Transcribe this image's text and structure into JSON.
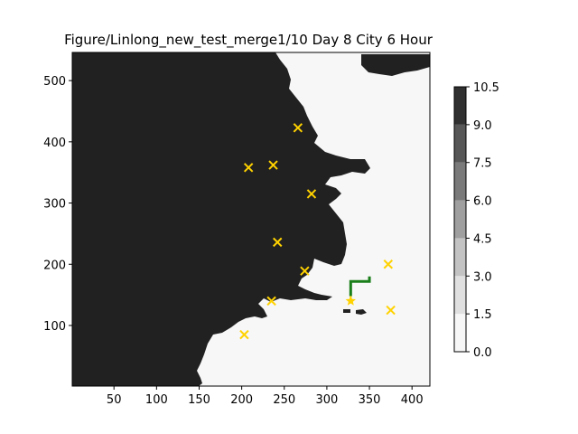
{
  "chart_data": {
    "type": "heatmap",
    "title": "Figure/Linlong_new_test_merge1/10 Day 8 City 6 Hour",
    "xlabel": "",
    "ylabel": "",
    "xlim": [
      1,
      421
    ],
    "ylim": [
      1,
      546
    ],
    "xticks": [
      50,
      100,
      150,
      200,
      250,
      300,
      350,
      400
    ],
    "yticks": [
      100,
      200,
      300,
      400,
      500
    ],
    "grid": false,
    "colorbar": {
      "levels": [
        0.0,
        1.5,
        3.0,
        4.5,
        6.0,
        7.5,
        9.0,
        10.5
      ],
      "tick_labels": [
        "0.0",
        "1.5",
        "3.0",
        "4.5",
        "6.0",
        "7.5",
        "9.0",
        "10.5"
      ],
      "band_colors": [
        "#f7f7f7",
        "#e0e0e0",
        "#c3c3c3",
        "#9f9f9f",
        "#7a7a7a",
        "#575757",
        "#303030"
      ]
    },
    "colors": {
      "land": "#212121",
      "sea": "#f7f7f7",
      "city_marker": "#ffd200",
      "route": "#1a7f1a"
    },
    "cities": [
      {
        "x": 266,
        "y": 423
      },
      {
        "x": 208,
        "y": 358
      },
      {
        "x": 237,
        "y": 362
      },
      {
        "x": 282,
        "y": 315
      },
      {
        "x": 242,
        "y": 236
      },
      {
        "x": 274,
        "y": 189
      },
      {
        "x": 235,
        "y": 140
      },
      {
        "x": 203,
        "y": 85
      },
      {
        "x": 372,
        "y": 200
      },
      {
        "x": 375,
        "y": 125
      }
    ],
    "star": {
      "x": 328,
      "y": 140
    },
    "route": [
      [
        328,
        148
      ],
      [
        328,
        172
      ],
      [
        350,
        172
      ],
      [
        350,
        180
      ]
    ]
  }
}
